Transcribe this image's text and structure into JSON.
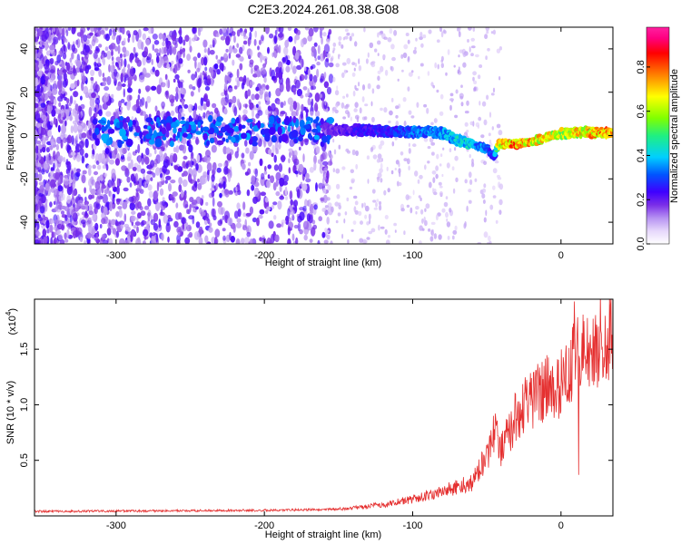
{
  "title": "C2E3.2024.261.08.38.G08",
  "chart_data": [
    {
      "type": "heatmap",
      "xlabel": "Height of straight line (km)",
      "ylabel": "Frequency (Hz)",
      "xlim": [
        -355,
        35
      ],
      "ylim": [
        -50,
        50
      ],
      "xticks": [
        -300,
        -200,
        -100,
        0
      ],
      "yticks": [
        -40,
        -20,
        0,
        20,
        40
      ],
      "colorbar": {
        "label": "Normalized spectral amplitude",
        "range": [
          0.0,
          0.98
        ],
        "ticks": [
          0.0,
          0.2,
          0.4,
          0.6,
          0.8
        ],
        "tick_labels": [
          "0.0",
          "0.2",
          "0.4",
          "0.6",
          "0.8"
        ],
        "colormap": [
          "#ffffff",
          "#e6d7fb",
          "#b691f2",
          "#7a2ee8",
          "#3f00ff",
          "#0055ff",
          "#00cfff",
          "#20f080",
          "#80ff00",
          "#ffff00",
          "#ff8000",
          "#ff0000",
          "#ff0080",
          "#ff20a0"
        ]
      },
      "ridge": {
        "x": [
          -160,
          -140,
          -120,
          -100,
          -90,
          -80,
          -70,
          -60,
          -50,
          -45,
          -42,
          -30,
          -20,
          -10,
          0,
          10,
          20,
          35
        ],
        "freq": [
          3,
          2.5,
          2,
          1.5,
          2,
          1,
          -2,
          -4,
          -6,
          -10,
          -4,
          -4,
          -3,
          -1,
          1,
          1.5,
          1.5,
          1.5
        ],
        "amplitude": [
          0.2,
          0.25,
          0.3,
          0.35,
          0.4,
          0.4,
          0.45,
          0.45,
          0.35,
          0.3,
          0.75,
          0.85,
          0.8,
          0.75,
          0.7,
          0.75,
          0.8,
          0.85
        ]
      }
    },
    {
      "type": "line",
      "xlabel": "Height of straight line (km)",
      "ylabel": "SNR (10 * v/v)",
      "scale_label": "(x10",
      "scale_exp": "4",
      "scale_close": ")",
      "xlim": [
        -355,
        35
      ],
      "ylim": [
        0,
        1.95
      ],
      "xticks": [
        -300,
        -200,
        -100,
        0
      ],
      "yticks": [
        0.5,
        1.0,
        1.5
      ],
      "ytick_labels": [
        "0.5",
        "1.0",
        "1.5"
      ],
      "color": "#e53030",
      "envelope": {
        "x": [
          -355,
          -200,
          -150,
          -120,
          -100,
          -80,
          -60,
          -50,
          -45,
          -40,
          -30,
          -20,
          -10,
          0,
          5,
          10,
          15,
          20,
          35
        ],
        "y": [
          0.04,
          0.05,
          0.06,
          0.1,
          0.15,
          0.22,
          0.3,
          0.55,
          0.75,
          0.6,
          0.9,
          1.05,
          1.15,
          1.2,
          1.3,
          1.45,
          1.5,
          1.55,
          1.62
        ]
      },
      "spikes": [
        {
          "x": -45,
          "y": 0.78
        },
        {
          "x": 9,
          "y": 1.93
        },
        {
          "x": 12,
          "y": 0.37
        }
      ]
    }
  ]
}
